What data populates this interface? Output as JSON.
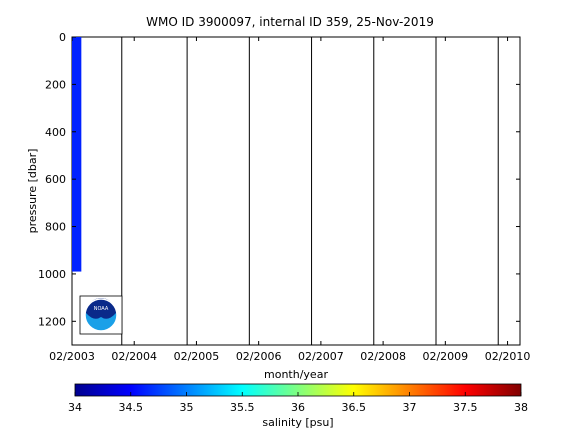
{
  "chart_data": {
    "type": "heatmap",
    "title": "WMO ID 3900097, internal ID 359, 25-Nov-2019",
    "xlabel": "month/year",
    "ylabel": "pressure [dbar]",
    "x_ticks": [
      "02/2003",
      "02/2004",
      "02/2005",
      "02/2006",
      "02/2007",
      "02/2008",
      "02/2009",
      "02/2010"
    ],
    "x_range_years": [
      2003.0,
      2010.2
    ],
    "y_ticks": [
      0,
      200,
      400,
      600,
      800,
      1000,
      1200
    ],
    "y_range": [
      0,
      1300
    ],
    "y_reversed": true,
    "profile_lines_x": [
      2003.8,
      2004.85,
      2005.85,
      2006.85,
      2007.85,
      2008.85,
      2009.85
    ],
    "data_strip": {
      "x_start": 2003.0,
      "x_end": 2003.15,
      "p_top": 0,
      "p_bottom": 990,
      "salinity": 34.3
    },
    "colorbar": {
      "label": "salinity [psu]",
      "ticks": [
        34,
        34.5,
        35,
        35.5,
        36,
        36.5,
        37,
        37.5,
        38
      ],
      "range": [
        34,
        38
      ],
      "colormap": "jet"
    },
    "logo": "noaa-logo"
  }
}
